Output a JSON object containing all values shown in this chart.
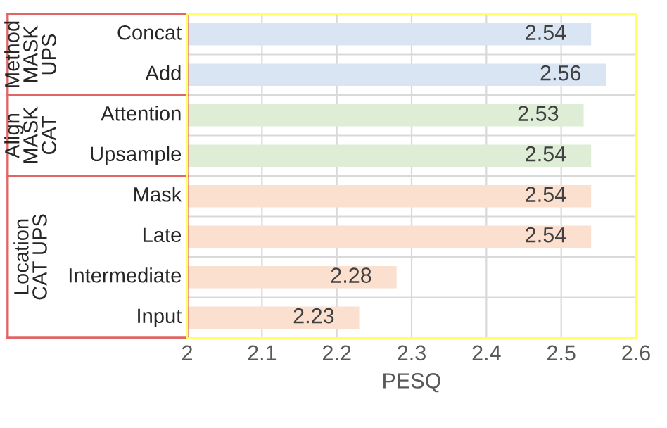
{
  "chart_data": {
    "type": "bar",
    "orientation": "horizontal",
    "xlabel": "PESQ",
    "categories": [
      "Concat",
      "Add",
      "Attention",
      "Upsample",
      "Mask",
      "Late",
      "Intermediate",
      "Input"
    ],
    "values": [
      2.54,
      2.56,
      2.53,
      2.54,
      2.54,
      2.54,
      2.28,
      2.23
    ],
    "colors": [
      "#dae5f3",
      "#dae5f3",
      "#deeed6",
      "#deeed6",
      "#fbe0d0",
      "#fbe0d0",
      "#fbe0d0",
      "#fbe0d0"
    ],
    "data_labels": true,
    "annotations": [
      "Method\nMASK\nUPS",
      "Align\nMASK\nCAT",
      "Location\nCAT UPS"
    ],
    "xlim": [
      2,
      2.6
    ],
    "xticks": [
      2,
      2.1,
      2.2,
      2.3,
      2.4,
      2.5,
      2.6
    ],
    "grid": true,
    "legend": false
  }
}
